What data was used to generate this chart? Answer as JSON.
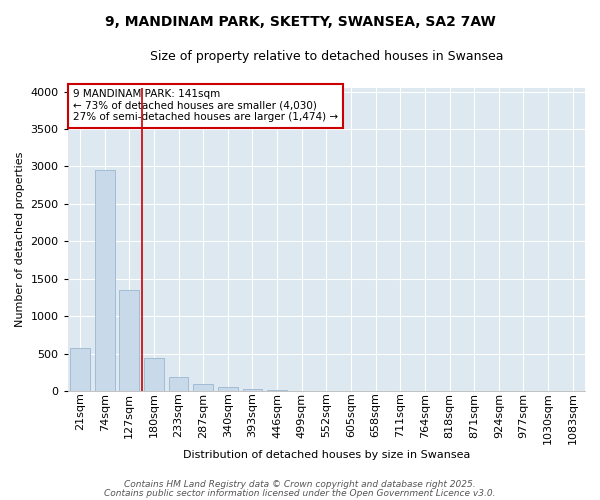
{
  "title1": "9, MANDINAM PARK, SKETTY, SWANSEA, SA2 7AW",
  "title2": "Size of property relative to detached houses in Swansea",
  "xlabel": "Distribution of detached houses by size in Swansea",
  "ylabel": "Number of detached properties",
  "categories": [
    "21sqm",
    "74sqm",
    "127sqm",
    "180sqm",
    "233sqm",
    "287sqm",
    "340sqm",
    "393sqm",
    "446sqm",
    "499sqm",
    "552sqm",
    "605sqm",
    "658sqm",
    "711sqm",
    "764sqm",
    "818sqm",
    "871sqm",
    "924sqm",
    "977sqm",
    "1030sqm",
    "1083sqm"
  ],
  "values": [
    575,
    2950,
    1350,
    440,
    195,
    100,
    55,
    30,
    20,
    0,
    0,
    0,
    0,
    0,
    0,
    0,
    0,
    0,
    0,
    0,
    0
  ],
  "bar_color": "#c8daea",
  "bar_edge_color": "#9ab8d0",
  "ylim": [
    0,
    4050
  ],
  "yticks": [
    0,
    500,
    1000,
    1500,
    2000,
    2500,
    3000,
    3500,
    4000
  ],
  "annotation_text_line1": "9 MANDINAM PARK: 141sqm",
  "annotation_text_line2": "← 73% of detached houses are smaller (4,030)",
  "annotation_text_line3": "27% of semi-detached houses are larger (1,474) →",
  "red_line_x": 2.5,
  "annotation_box_color": "#ffffff",
  "annotation_box_edge": "#cc0000",
  "red_line_color": "#cc0000",
  "bg_color": "#dde8f0",
  "footer1": "Contains HM Land Registry data © Crown copyright and database right 2025.",
  "footer2": "Contains public sector information licensed under the Open Government Licence v3.0.",
  "title_fontsize": 10,
  "subtitle_fontsize": 9,
  "annotation_fontsize": 7.5,
  "axis_label_fontsize": 8,
  "tick_fontsize": 8,
  "footer_fontsize": 6.5,
  "bar_width": 0.8
}
